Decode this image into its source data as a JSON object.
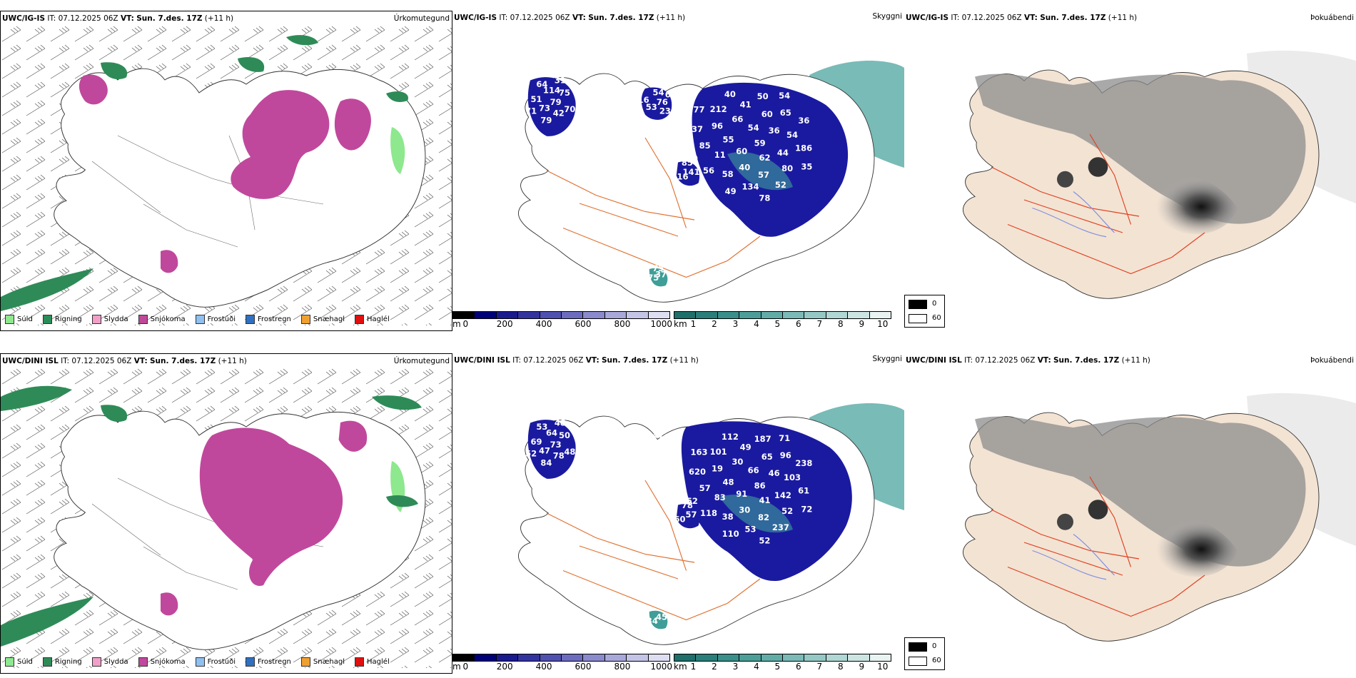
{
  "rows": [
    {
      "model": "UWC/IG-IS",
      "it_label": "IT:",
      "it_value": "07.12.2025 06Z",
      "vt_label": "VT:",
      "vt_value": "Sun. 7.des. 17Z",
      "lead": "(+11 h)",
      "visibility_numbers": [
        "79",
        "73",
        "114",
        "42",
        "51",
        "75",
        "79",
        "64",
        "70",
        "71",
        "31",
        "76",
        "53",
        "54",
        "23",
        "16",
        "61",
        "59",
        "60",
        "54",
        "62",
        "55",
        "36",
        "40",
        "66",
        "44",
        "11",
        "60",
        "57",
        "96",
        "54",
        "58",
        "41",
        "80",
        "85",
        "65",
        "134",
        "212",
        "186",
        "56",
        "50",
        "52",
        "37",
        "36",
        "49",
        "40",
        "35",
        "40",
        "54",
        "78",
        "77",
        "141",
        "116",
        "85",
        "37",
        "75",
        "75"
      ]
    },
    {
      "model": "UWC/DINI ISL",
      "it_label": "IT:",
      "it_value": "07.12.2025 06Z",
      "vt_label": "VT:",
      "vt_value": "Sun. 7.des. 17Z",
      "lead": "(+11 h)",
      "visibility_numbers": [
        "73",
        "47",
        "64",
        "78",
        "69",
        "50",
        "84",
        "53",
        "48",
        "52",
        "48",
        "45",
        "46",
        "47",
        "47",
        "54",
        "78",
        "86",
        "91",
        "66",
        "41",
        "48",
        "46",
        "30",
        "30",
        "142",
        "83",
        "65",
        "82",
        "19",
        "103",
        "38",
        "49",
        "52",
        "57",
        "96",
        "53",
        "101",
        "61",
        "118",
        "187",
        "237",
        "620",
        "238",
        "110",
        "112",
        "72",
        "52",
        "71",
        "52",
        "163",
        "57",
        "60",
        "78",
        "45",
        "34"
      ]
    }
  ],
  "panel_titles": {
    "precip": "Úrkomutegund",
    "visibility": "Skyggni",
    "fog": "Þokuábendi"
  },
  "precip_legend": [
    {
      "label": "Súld",
      "color": "#8ee88e"
    },
    {
      "label": "Rigning",
      "color": "#2e8b57"
    },
    {
      "label": "Slydda",
      "color": "#f0a0c8"
    },
    {
      "label": "Snjókoma",
      "color": "#c0489c"
    },
    {
      "label": "Frostúði",
      "color": "#90c0f0"
    },
    {
      "label": "Frostregn",
      "color": "#3070c0"
    },
    {
      "label": "Snæhagl",
      "color": "#f0a030"
    },
    {
      "label": "Haglél",
      "color": "#e01010"
    }
  ],
  "elevation_bar": {
    "unit": "m",
    "ticks": [
      "0",
      "200",
      "400",
      "600",
      "800",
      "1000"
    ],
    "colors": [
      "#000000",
      "#00007a",
      "#1a1a8f",
      "#3333a0",
      "#5050b0",
      "#6c6cbf",
      "#8a8acc",
      "#a8a8d9",
      "#c4c4e6",
      "#dedef2"
    ]
  },
  "visibility_bar": {
    "unit": "km",
    "ticks": [
      "1",
      "2",
      "3",
      "4",
      "5",
      "6",
      "7",
      "8",
      "9",
      "10"
    ],
    "colors": [
      "#1f6f6a",
      "#2a7f7a",
      "#3a8f8a",
      "#4c9e99",
      "#62aca8",
      "#7bbab7",
      "#95c8c5",
      "#b0d7d4",
      "#cce5e3",
      "#e8f3f2"
    ]
  },
  "fog_legend": {
    "low": "0",
    "high": "60"
  },
  "map_colors": {
    "snow": "#c0489c",
    "rain": "#2e8b57",
    "drizzle": "#8ee88e",
    "land": "#f3e3d3",
    "road": "#e07030",
    "blue_vis": "#1a1aa0",
    "teal_vis": "#3f9e98"
  }
}
